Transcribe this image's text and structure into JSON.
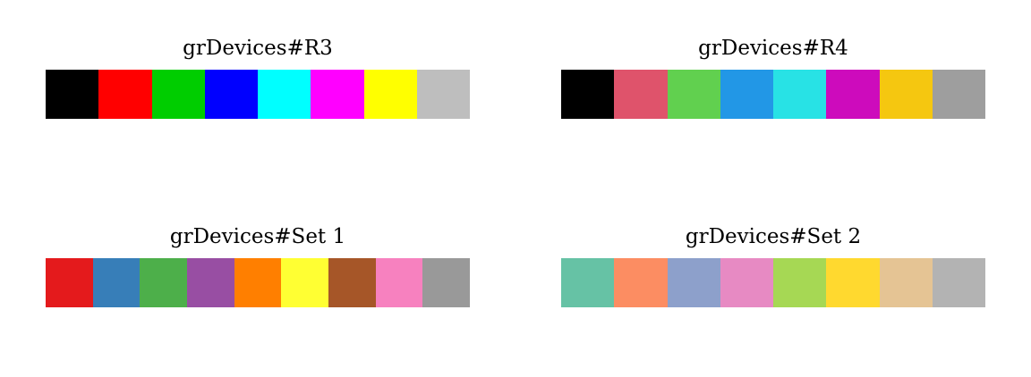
{
  "palettes": [
    {
      "title": "grDevices#R3",
      "colors": [
        "#000000",
        "#FF0000",
        "#00CD00",
        "#0000FF",
        "#00FFFF",
        "#FF00FF",
        "#FFFF00",
        "#BEBEBE"
      ]
    },
    {
      "title": "grDevices#R4",
      "colors": [
        "#000000",
        "#DF536B",
        "#61D04F",
        "#2297E6",
        "#28E2E5",
        "#CD0BBC",
        "#F5C710",
        "#9E9E9E"
      ]
    },
    {
      "title": "grDevices#Set 1",
      "colors": [
        "#E41A1C",
        "#377EB8",
        "#4DAF4A",
        "#984EA3",
        "#FF7F00",
        "#FFFF33",
        "#A65628",
        "#F781BF",
        "#999999"
      ]
    },
    {
      "title": "grDevices#Set 2",
      "colors": [
        "#66C2A5",
        "#FC8D62",
        "#8DA0CB",
        "#E78AC3",
        "#A6D854",
        "#FFD92F",
        "#E5C494",
        "#B3B3B3"
      ]
    }
  ]
}
